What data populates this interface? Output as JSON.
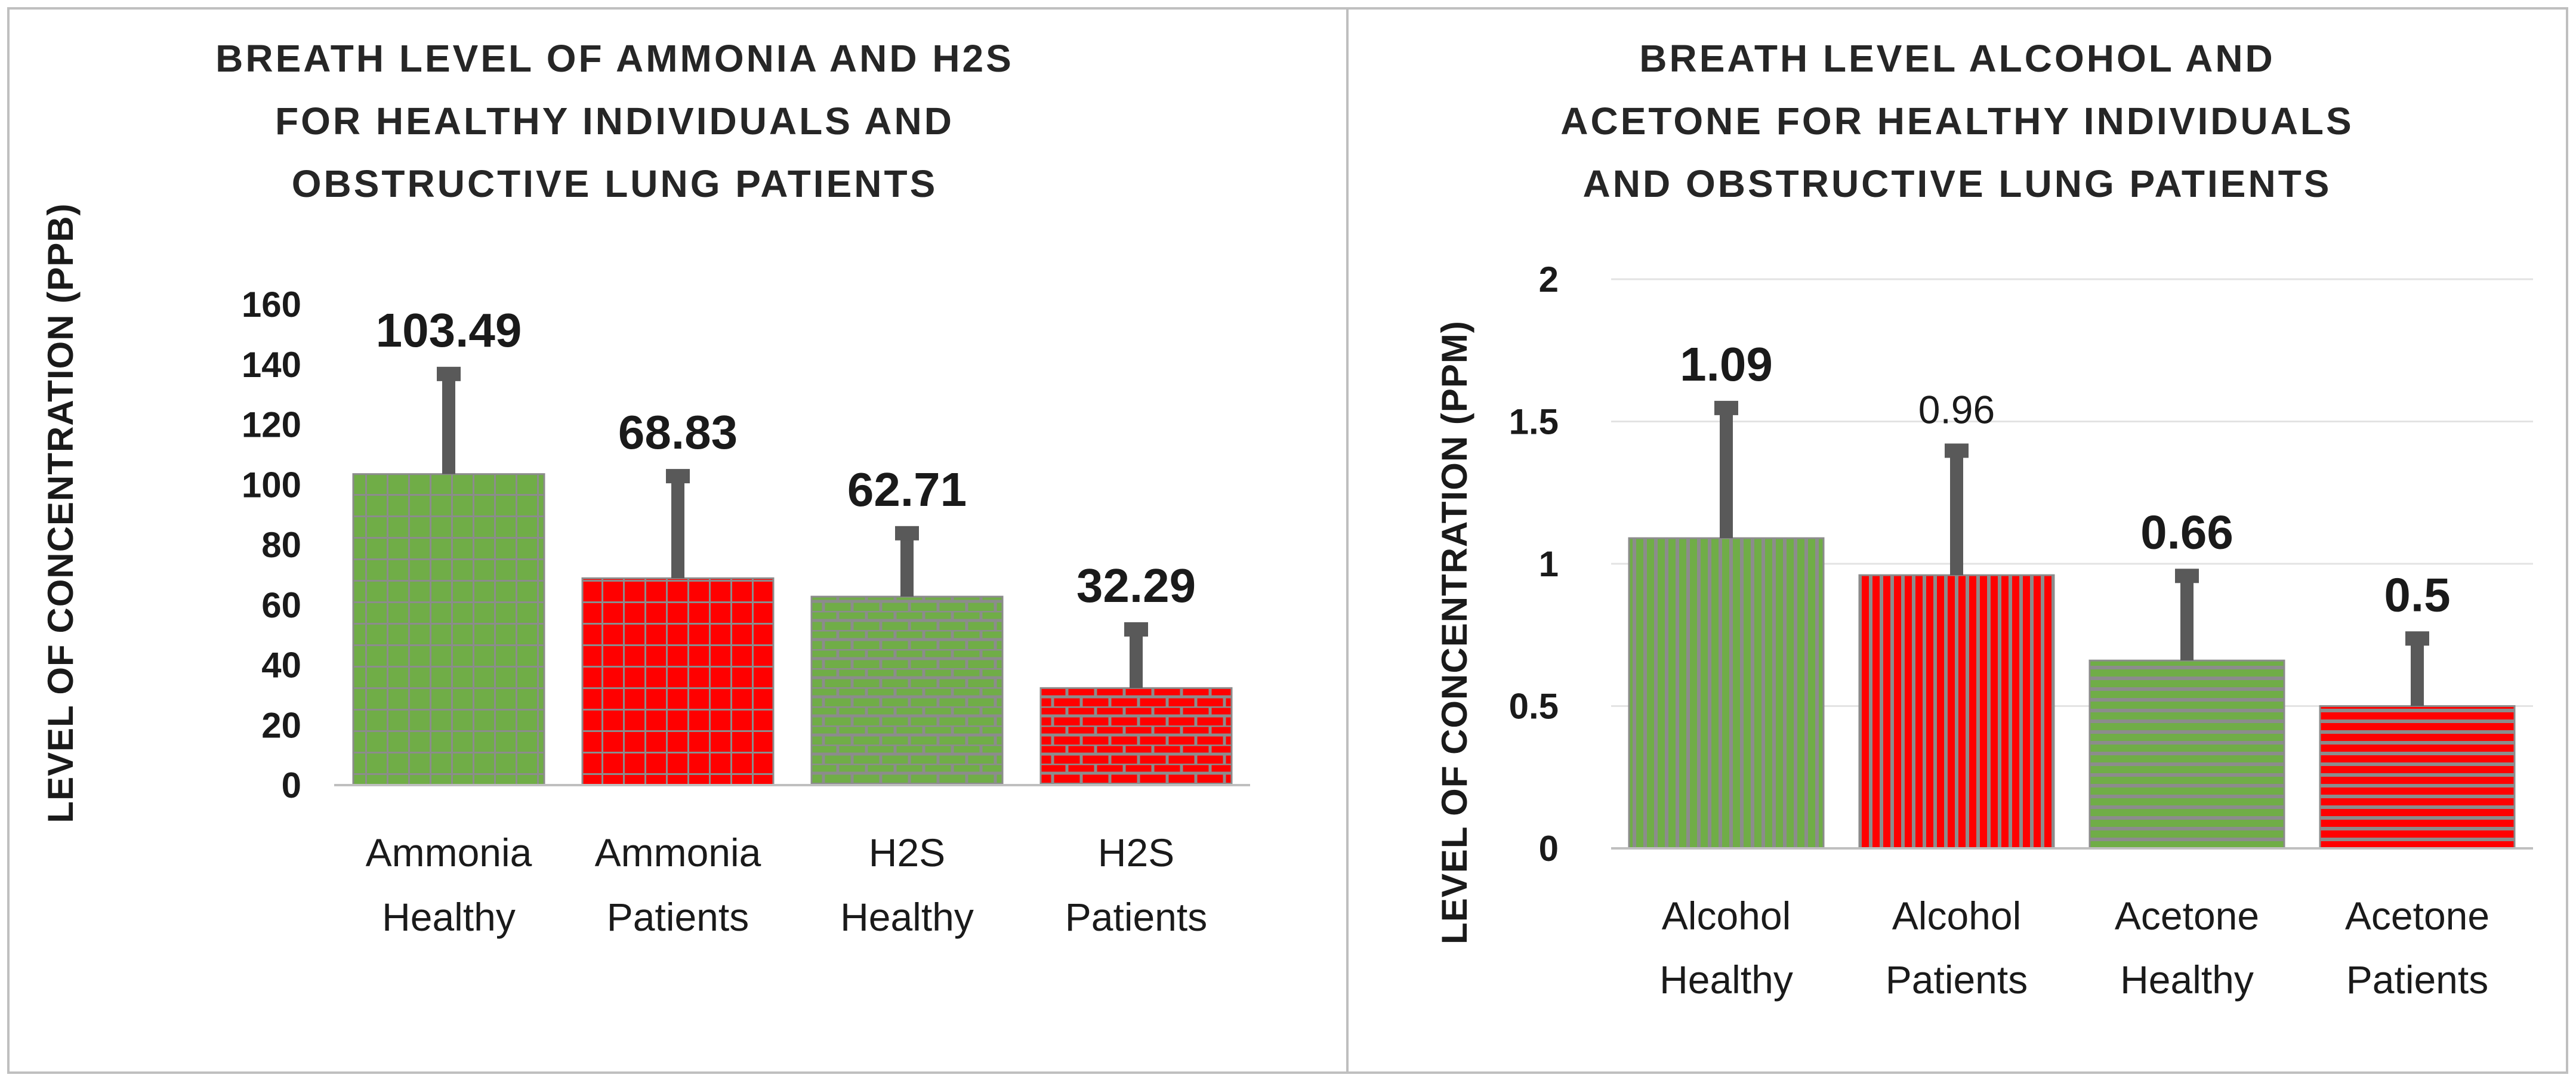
{
  "colors": {
    "green": "#70ad47",
    "red": "#ff0000",
    "pattern_line": "#8c8c8c",
    "error_bar": "#595959",
    "grid": "#e3e3e3",
    "axis": "#bfbfbf",
    "border": "#bfbfbf"
  },
  "chart_data": [
    {
      "type": "bar",
      "title_lines": [
        "BREATH LEVEL OF AMMONIA AND H2S",
        "FOR HEALTHY INDIVIDUALS AND",
        "OBSTRUCTIVE LUNG PATIENTS"
      ],
      "ylabel": "LEVEL OF CONCENTRATION (PPB)",
      "xlabel": "",
      "ylim": [
        0,
        160
      ],
      "yticks": [
        "0",
        "20",
        "40",
        "60",
        "80",
        "100",
        "120",
        "140",
        "160"
      ],
      "grid": false,
      "categories": [
        {
          "line1": "Ammonia",
          "line2": "Healthy"
        },
        {
          "line1": "Ammonia",
          "line2": "Patients"
        },
        {
          "line1": "H2S",
          "line2": "Healthy"
        },
        {
          "line1": "H2S",
          "line2": "Patients"
        }
      ],
      "values": [
        103.49,
        68.83,
        62.71,
        32.29
      ],
      "value_labels": [
        "103.49",
        "68.83",
        "62.71",
        "32.29"
      ],
      "error_tops": [
        138,
        104,
        85,
        53
      ],
      "fills": [
        "green",
        "red",
        "green",
        "red"
      ],
      "patterns": [
        "grid",
        "grid",
        "brick",
        "brick"
      ]
    },
    {
      "type": "bar",
      "title_lines": [
        "BREATH LEVEL ALCOHOL AND",
        "ACETONE FOR HEALTHY INDIVIDUALS",
        "AND OBSTRUCTIVE LUNG PATIENTS"
      ],
      "ylabel": "LEVEL OF CONCENTRATION (PPM)",
      "xlabel": "",
      "ylim": [
        0,
        2
      ],
      "yticks": [
        "0",
        "0.5",
        "1",
        "1.5",
        "2"
      ],
      "grid": true,
      "categories": [
        {
          "line1": "Alcohol",
          "line2": "Healthy"
        },
        {
          "line1": "Alcohol",
          "line2": "Patients"
        },
        {
          "line1": "Acetone",
          "line2": "Healthy"
        },
        {
          "line1": "Acetone",
          "line2": "Patients"
        }
      ],
      "values": [
        1.09,
        0.96,
        0.66,
        0.5
      ],
      "value_labels": [
        "1.09",
        "0.96",
        "0.66",
        "0.5"
      ],
      "label_bold": [
        true,
        false,
        true,
        true
      ],
      "error_tops": [
        1.56,
        1.41,
        0.97,
        0.75
      ],
      "fills": [
        "green",
        "red",
        "green",
        "red"
      ],
      "patterns": [
        "vstripe",
        "vstripe",
        "hstripe",
        "hstripe"
      ]
    }
  ]
}
